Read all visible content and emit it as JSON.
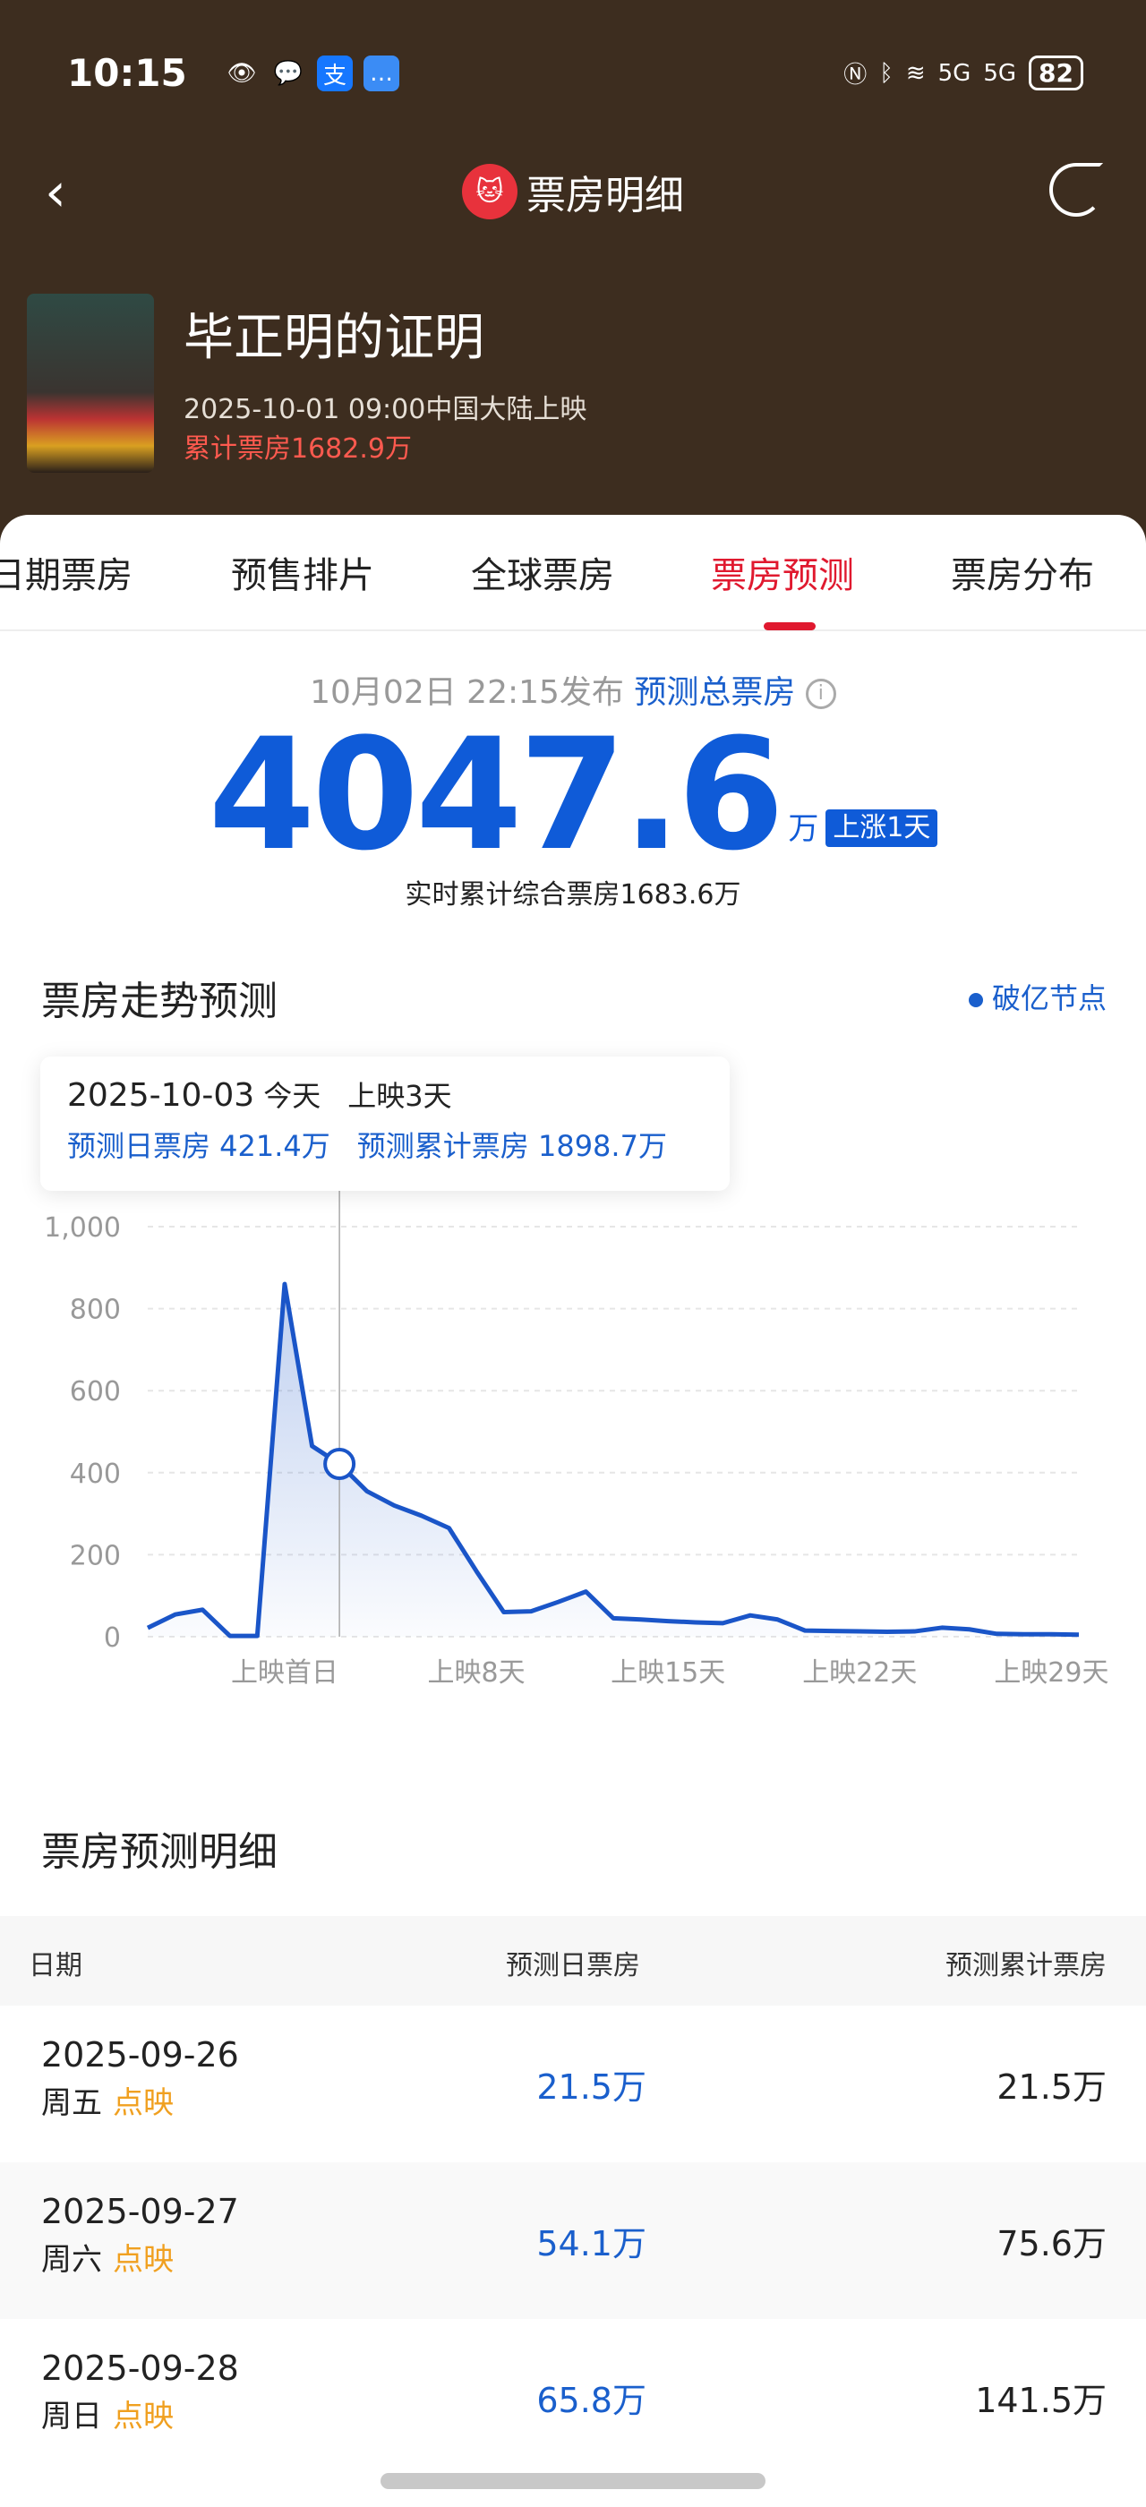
{
  "status_bar": {
    "time": "10:15",
    "battery": "82",
    "network": [
      "5G",
      "5G"
    ]
  },
  "nav": {
    "title": "票房明细",
    "icons": [
      "back-chevron-icon",
      "maoyan-cat-logo",
      "share-icon"
    ]
  },
  "movie": {
    "title": "毕正明的证明",
    "release": "2025-10-01 09:00中国大陆上映",
    "cumulative": "累计票房1682.9万"
  },
  "tabs": [
    {
      "label": "日期票房"
    },
    {
      "label": "预售排片"
    },
    {
      "label": "全球票房"
    },
    {
      "label": "票房预测",
      "active": true
    },
    {
      "label": "票房分布"
    }
  ],
  "forecast": {
    "published": "10月02日 22:15发布",
    "label": "预测总票房",
    "total": "4047.6",
    "unit": "万",
    "badge": "上涨1天",
    "realtime": "实时累计综合票房1683.6万"
  },
  "trend": {
    "title": "票房走势预测",
    "legend": "破亿节点",
    "tooltip": {
      "date": "2025-10-03",
      "today": "今天",
      "day": "上映3天",
      "daily": "预测日票房 421.4万",
      "cumulative": "预测累计票房 1898.7万"
    }
  },
  "chart_data": {
    "type": "area",
    "ylim": [
      0,
      1000
    ],
    "yticks": [
      "1,000",
      "800",
      "600",
      "400",
      "200",
      "0"
    ],
    "xticks": [
      "上映首日",
      "上映8天",
      "上映15天",
      "上映22天",
      "上映29天"
    ],
    "grid": true,
    "color": "#1a55c8",
    "x": [
      "09-26",
      "09-27",
      "09-28",
      "09-29",
      "09-30",
      "10-01",
      "10-02",
      "10-03",
      "10-04",
      "10-05",
      "10-06",
      "10-07",
      "10-08",
      "10-09",
      "10-10",
      "10-11",
      "10-12",
      "10-13",
      "10-14",
      "10-15",
      "10-16",
      "10-17",
      "10-18",
      "10-19",
      "10-20",
      "10-21",
      "10-22",
      "10-23",
      "10-24",
      "10-25",
      "10-26",
      "10-27",
      "10-28",
      "10-29",
      "10-30"
    ],
    "values": [
      21.5,
      54.1,
      65.8,
      2,
      2,
      860,
      465,
      421.4,
      355,
      320,
      295,
      265,
      160,
      60,
      62,
      85,
      110,
      45,
      42,
      38,
      35,
      33,
      52,
      42,
      15,
      14,
      13,
      12,
      13,
      22,
      18,
      7,
      6,
      6,
      5
    ],
    "highlight": "10-03"
  },
  "detail": {
    "title": "票房预测明细",
    "headers": [
      "日期",
      "预测日票房",
      "预测累计票房"
    ],
    "rows": [
      {
        "date": "2025-09-26",
        "weekday": "周五",
        "tag": "点映",
        "daily": "21.5万",
        "total": "21.5万"
      },
      {
        "date": "2025-09-27",
        "weekday": "周六",
        "tag": "点映",
        "daily": "54.1万",
        "total": "75.6万"
      },
      {
        "date": "2025-09-28",
        "weekday": "周日",
        "tag": "点映",
        "daily": "65.8万",
        "total": "141.5万"
      }
    ]
  }
}
